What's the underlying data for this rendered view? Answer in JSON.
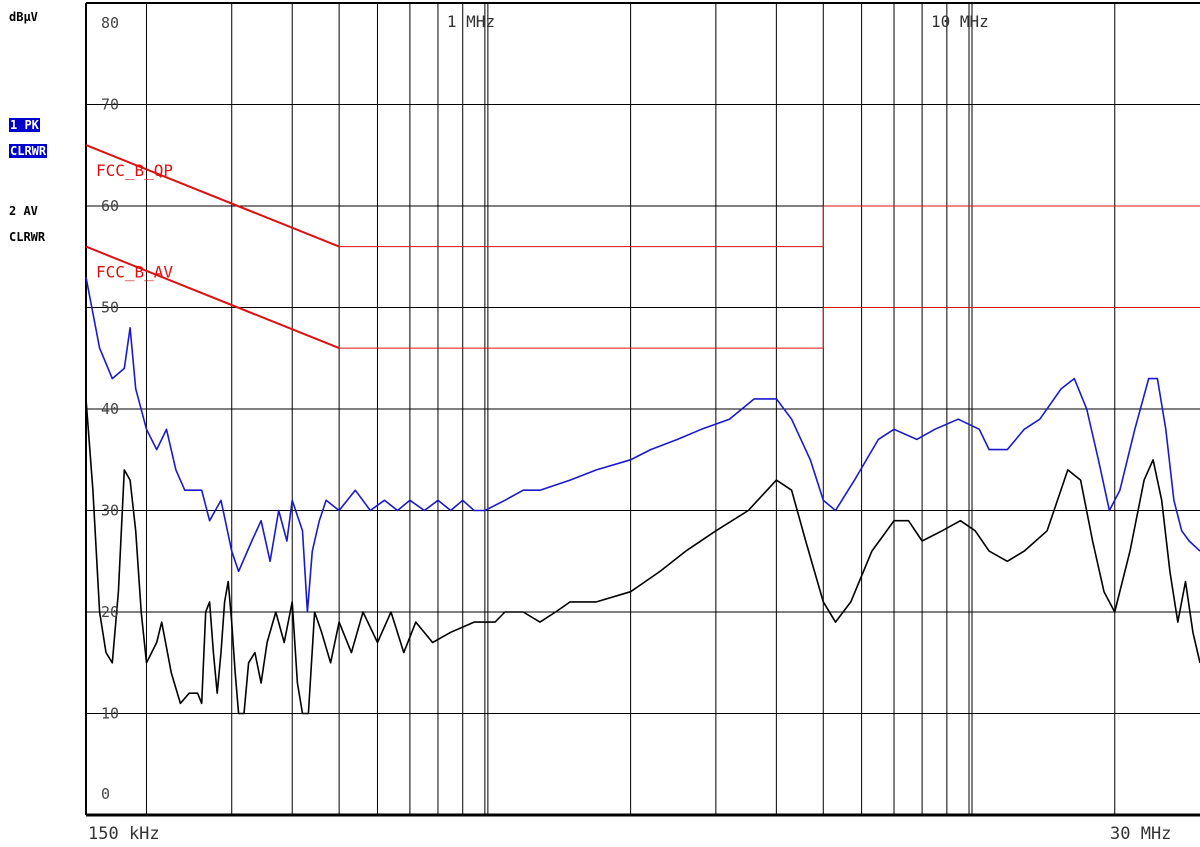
{
  "unit_label": "dBµV",
  "traces": [
    {
      "label": "1 PK",
      "mode": "CLRWR",
      "highlighted": true
    },
    {
      "label": "2 AV",
      "mode": "CLRWR",
      "highlighted": false
    }
  ],
  "chart_data": {
    "type": "line",
    "x_scale": "log",
    "xlim": [
      150000,
      30000000
    ],
    "ylim": [
      0,
      80
    ],
    "y_ticks": [
      0,
      10,
      20,
      30,
      40,
      50,
      60,
      70,
      80
    ],
    "y_tick_labels": [
      "0",
      "10",
      "20",
      "30",
      "40",
      "50",
      "60",
      "70",
      "80"
    ],
    "x_top_labels": [
      {
        "value": 1000000,
        "text": "1 MHz"
      },
      {
        "value": 10000000,
        "text": "10 MHz"
      }
    ],
    "x_bottom_labels": [
      {
        "value": 150000,
        "text": "150 kHz"
      },
      {
        "value": 30000000,
        "text": "30 MHz"
      }
    ],
    "grid": true,
    "colors": {
      "pk": "#1a1acc",
      "av": "#000000",
      "limit": "#dd1111",
      "grid": "#000000"
    },
    "limit_lines": [
      {
        "name": "FCC_B_QP",
        "points": [
          [
            150000,
            66
          ],
          [
            500000,
            56
          ],
          [
            5000000,
            56
          ],
          [
            5000000,
            60
          ],
          [
            30000000,
            60
          ]
        ]
      },
      {
        "name": "FCC_B_AV",
        "points": [
          [
            150000,
            56
          ],
          [
            500000,
            46
          ],
          [
            5000000,
            46
          ],
          [
            5000000,
            50
          ],
          [
            30000000,
            50
          ]
        ]
      }
    ],
    "series": [
      {
        "name": "1 PK",
        "color": "#1a1acc",
        "points": [
          [
            150000,
            53
          ],
          [
            160000,
            46
          ],
          [
            170000,
            43
          ],
          [
            180000,
            44
          ],
          [
            185000,
            48
          ],
          [
            190000,
            42
          ],
          [
            200000,
            38
          ],
          [
            210000,
            36
          ],
          [
            220000,
            38
          ],
          [
            230000,
            34
          ],
          [
            240000,
            32
          ],
          [
            260000,
            32
          ],
          [
            270000,
            29
          ],
          [
            285000,
            31
          ],
          [
            300000,
            26
          ],
          [
            310000,
            24
          ],
          [
            330000,
            27
          ],
          [
            345000,
            29
          ],
          [
            360000,
            25
          ],
          [
            375000,
            30
          ],
          [
            390000,
            27
          ],
          [
            400000,
            31
          ],
          [
            420000,
            28
          ],
          [
            430000,
            20
          ],
          [
            440000,
            26
          ],
          [
            455000,
            29
          ],
          [
            470000,
            31
          ],
          [
            500000,
            30
          ],
          [
            540000,
            32
          ],
          [
            580000,
            30
          ],
          [
            620000,
            31
          ],
          [
            660000,
            30
          ],
          [
            700000,
            31
          ],
          [
            750000,
            30
          ],
          [
            800000,
            31
          ],
          [
            850000,
            30
          ],
          [
            900000,
            31
          ],
          [
            950000,
            30
          ],
          [
            1000000,
            30
          ],
          [
            1100000,
            31
          ],
          [
            1200000,
            32
          ],
          [
            1300000,
            32
          ],
          [
            1500000,
            33
          ],
          [
            1700000,
            34
          ],
          [
            2000000,
            35
          ],
          [
            2200000,
            36
          ],
          [
            2500000,
            37
          ],
          [
            2800000,
            38
          ],
          [
            3200000,
            39
          ],
          [
            3600000,
            41
          ],
          [
            4000000,
            41
          ],
          [
            4300000,
            39
          ],
          [
            4700000,
            35
          ],
          [
            5000000,
            31
          ],
          [
            5300000,
            30
          ],
          [
            5800000,
            33
          ],
          [
            6500000,
            37
          ],
          [
            7000000,
            38
          ],
          [
            7800000,
            37
          ],
          [
            8500000,
            38
          ],
          [
            9500000,
            39
          ],
          [
            10500000,
            38
          ],
          [
            11000000,
            36
          ],
          [
            12000000,
            36
          ],
          [
            13000000,
            38
          ],
          [
            14000000,
            39
          ],
          [
            15500000,
            42
          ],
          [
            16500000,
            43
          ],
          [
            17500000,
            40
          ],
          [
            18500000,
            35
          ],
          [
            19500000,
            30
          ],
          [
            20500000,
            32
          ],
          [
            22000000,
            38
          ],
          [
            23500000,
            43
          ],
          [
            24500000,
            43
          ],
          [
            25500000,
            38
          ],
          [
            26500000,
            31
          ],
          [
            27500000,
            28
          ],
          [
            28500000,
            27
          ],
          [
            30000000,
            26
          ]
        ]
      },
      {
        "name": "2 AV",
        "color": "#000000",
        "points": [
          [
            150000,
            41
          ],
          [
            155000,
            32
          ],
          [
            160000,
            20
          ],
          [
            165000,
            16
          ],
          [
            170000,
            15
          ],
          [
            175000,
            22
          ],
          [
            180000,
            34
          ],
          [
            185000,
            33
          ],
          [
            190000,
            28
          ],
          [
            195000,
            20
          ],
          [
            200000,
            15
          ],
          [
            210000,
            17
          ],
          [
            215000,
            19
          ],
          [
            225000,
            14
          ],
          [
            235000,
            11
          ],
          [
            245000,
            12
          ],
          [
            255000,
            12
          ],
          [
            260000,
            11
          ],
          [
            265000,
            20
          ],
          [
            270000,
            21
          ],
          [
            275000,
            16
          ],
          [
            280000,
            12
          ],
          [
            285000,
            16
          ],
          [
            290000,
            21
          ],
          [
            295000,
            23
          ],
          [
            300000,
            19
          ],
          [
            305000,
            14
          ],
          [
            310000,
            10
          ],
          [
            318000,
            10
          ],
          [
            325000,
            15
          ],
          [
            335000,
            16
          ],
          [
            345000,
            13
          ],
          [
            355000,
            17
          ],
          [
            370000,
            20
          ],
          [
            385000,
            17
          ],
          [
            400000,
            21
          ],
          [
            410000,
            13
          ],
          [
            420000,
            10
          ],
          [
            432000,
            10
          ],
          [
            445000,
            20
          ],
          [
            460000,
            18
          ],
          [
            480000,
            15
          ],
          [
            500000,
            19
          ],
          [
            530000,
            16
          ],
          [
            560000,
            20
          ],
          [
            600000,
            17
          ],
          [
            640000,
            20
          ],
          [
            680000,
            16
          ],
          [
            720000,
            19
          ],
          [
            780000,
            17
          ],
          [
            850000,
            18
          ],
          [
            950000,
            19
          ],
          [
            1050000,
            19
          ],
          [
            1100000,
            20
          ],
          [
            1200000,
            20
          ],
          [
            1300000,
            19
          ],
          [
            1400000,
            20
          ],
          [
            1500000,
            21
          ],
          [
            1700000,
            21
          ],
          [
            2000000,
            22
          ],
          [
            2300000,
            24
          ],
          [
            2600000,
            26
          ],
          [
            3000000,
            28
          ],
          [
            3500000,
            30
          ],
          [
            4000000,
            33
          ],
          [
            4300000,
            32
          ],
          [
            4600000,
            27
          ],
          [
            5000000,
            21
          ],
          [
            5300000,
            19
          ],
          [
            5700000,
            21
          ],
          [
            6300000,
            26
          ],
          [
            7000000,
            29
          ],
          [
            7500000,
            29
          ],
          [
            8000000,
            27
          ],
          [
            8800000,
            28
          ],
          [
            9600000,
            29
          ],
          [
            10300000,
            28
          ],
          [
            11000000,
            26
          ],
          [
            12000000,
            25
          ],
          [
            13000000,
            26
          ],
          [
            14500000,
            28
          ],
          [
            16000000,
            34
          ],
          [
            17000000,
            33
          ],
          [
            18000000,
            27
          ],
          [
            19000000,
            22
          ],
          [
            20000000,
            20
          ],
          [
            21500000,
            26
          ],
          [
            23000000,
            33
          ],
          [
            24000000,
            35
          ],
          [
            25000000,
            31
          ],
          [
            26000000,
            24
          ],
          [
            27000000,
            19
          ],
          [
            28000000,
            23
          ],
          [
            29000000,
            18
          ],
          [
            30000000,
            15
          ]
        ]
      }
    ]
  }
}
